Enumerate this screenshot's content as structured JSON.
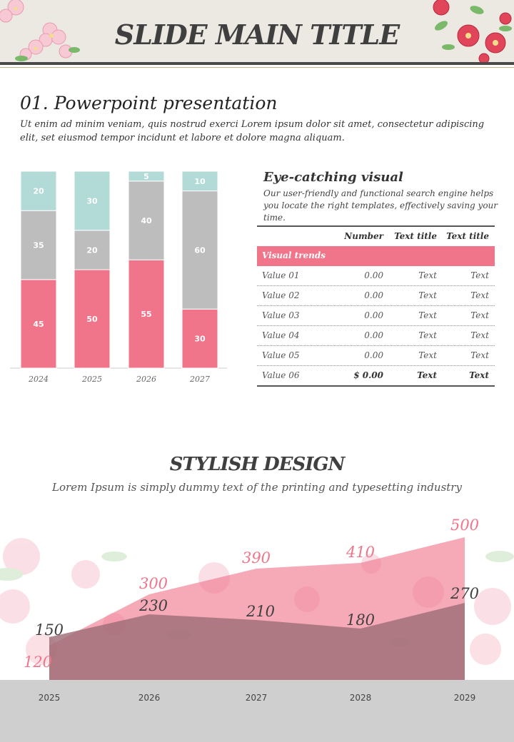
{
  "header": {
    "title": "SLIDE MAIN TITLE"
  },
  "section1": {
    "title": "01. Powerpoint presentation",
    "body": "Ut enim ad minim veniam, quis nostrud exerci  Lorem ipsum dolor sit amet, consectetur adipiscing elit, set eiusmod tempor incidunt et labore et dolore magna aliquam."
  },
  "visual": {
    "title": "Eye-catching visual",
    "body": "Our user-friendly and functional search engine helps you locate the right templates, effectively saving your time."
  },
  "table": {
    "headers": [
      "",
      "Number",
      "Text title",
      "Text title"
    ],
    "band_label": "Visual trends",
    "rows": [
      [
        "Value 01",
        "0.00",
        "Text",
        "Text"
      ],
      [
        "Value 02",
        "0.00",
        "Text",
        "Text"
      ],
      [
        "Value 03",
        "0.00",
        "Text",
        "Text"
      ],
      [
        "Value 04",
        "0.00",
        "Text",
        "Text"
      ],
      [
        "Value 05",
        "0.00",
        "Text",
        "Text"
      ],
      [
        "Value 06",
        "$ 0.00",
        "Text",
        "Text"
      ]
    ]
  },
  "section2": {
    "title": "STYLISH DESIGN",
    "subtitle": "Lorem Ipsum is simply dummy text of the printing and typesetting industry"
  },
  "colors": {
    "pink": "#f0758a",
    "gray": "#bdbdbd",
    "teal": "#b2dad6",
    "mauve": "#9e6e78",
    "dark": "#3f3f3f"
  },
  "chart_data": [
    {
      "type": "bar",
      "stacked": true,
      "categories": [
        "2024",
        "2025",
        "2026",
        "2027"
      ],
      "series": [
        {
          "values": [
            45,
            50,
            55,
            30
          ],
          "color": "#f0758a"
        },
        {
          "values": [
            35,
            20,
            40,
            60
          ],
          "color": "#bdbdbd"
        },
        {
          "values": [
            20,
            30,
            5,
            10
          ],
          "color": "#b2dad6"
        }
      ],
      "ylim": [
        0,
        100
      ]
    },
    {
      "type": "area",
      "x": [
        "2025",
        "2026",
        "2027",
        "2028",
        "2029"
      ],
      "series": [
        {
          "values": [
            120,
            300,
            390,
            410,
            500
          ],
          "color": "#f0758a"
        },
        {
          "values": [
            150,
            230,
            210,
            180,
            270
          ],
          "color": "#9e6e78"
        }
      ],
      "ylim": [
        0,
        500
      ]
    }
  ]
}
